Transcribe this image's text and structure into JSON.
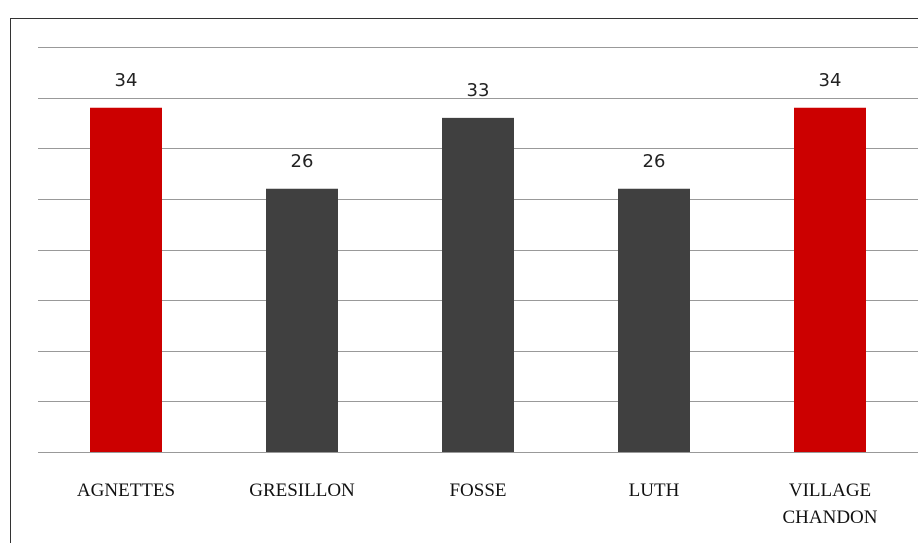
{
  "chart_data": {
    "type": "bar",
    "categories": [
      "AGNETTES",
      "GRESILLON",
      "FOSSE",
      "LUTH",
      "VILLAGE CHANDON"
    ],
    "values": [
      34,
      26,
      33,
      26,
      34
    ],
    "colors": [
      "#cc0000",
      "#404040",
      "#404040",
      "#404040",
      "#cc0000"
    ],
    "ylim": [
      0,
      40
    ],
    "yticks": [
      0,
      5,
      10,
      15,
      20,
      25,
      30,
      35,
      40
    ],
    "grid": true
  }
}
